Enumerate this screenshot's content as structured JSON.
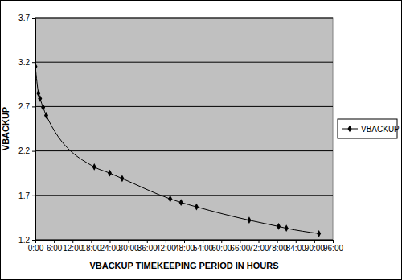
{
  "chart_data": {
    "type": "line",
    "x_label": "VBACKUP TIMEKEEPING PERIOD IN HOURS",
    "y_label": "VBACKUP",
    "x": [
      0,
      1,
      1.5,
      2.5,
      3.5,
      19,
      24,
      28,
      43.5,
      47,
      52,
      69,
      78.5,
      81,
      91.5
    ],
    "series": [
      {
        "name": "VBACKUP",
        "color": "#000000",
        "marker": "diamond",
        "values": [
          3.15,
          2.85,
          2.79,
          2.69,
          2.6,
          2.02,
          1.95,
          1.89,
          1.66,
          1.62,
          1.57,
          1.42,
          1.35,
          1.33,
          1.27
        ]
      }
    ],
    "xlim": [
      0,
      96
    ],
    "xticks": [
      {
        "value": 0,
        "label": "0:00"
      },
      {
        "value": 6,
        "label": "6:00"
      },
      {
        "value": 12,
        "label": "12:00"
      },
      {
        "value": 18,
        "label": "18:00"
      },
      {
        "value": 24,
        "label": "24:00"
      },
      {
        "value": 30,
        "label": "30:00"
      },
      {
        "value": 36,
        "label": "36:00"
      },
      {
        "value": 42,
        "label": "42:00"
      },
      {
        "value": 48,
        "label": "48:00"
      },
      {
        "value": 54,
        "label": "54:00"
      },
      {
        "value": 60,
        "label": "60:00"
      },
      {
        "value": 66,
        "label": "66:00"
      },
      {
        "value": 72,
        "label": "72:00"
      },
      {
        "value": 78,
        "label": "78:00"
      },
      {
        "value": 84,
        "label": "84:00"
      },
      {
        "value": 90,
        "label": "90:00"
      },
      {
        "value": 96,
        "label": "96:00"
      }
    ],
    "ylim": [
      1.2,
      3.7
    ],
    "yticks": [
      1.2,
      1.7,
      2.2,
      2.7,
      3.2,
      3.7
    ],
    "grid": true,
    "legend": "right"
  }
}
